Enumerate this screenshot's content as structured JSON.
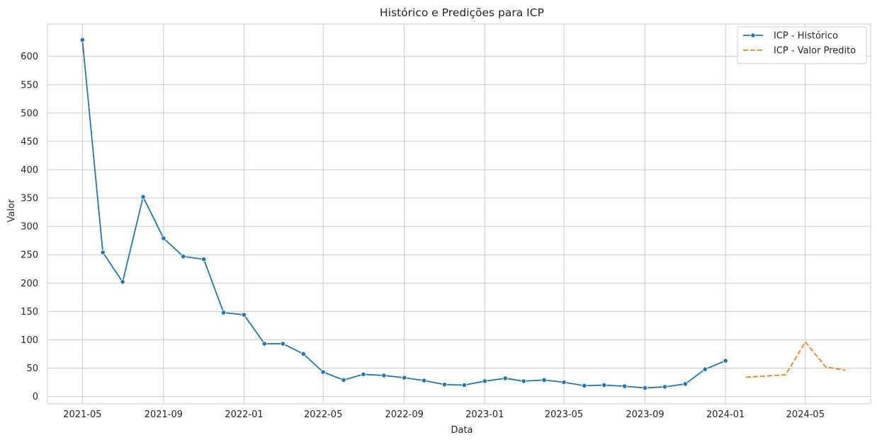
{
  "chart_data": {
    "type": "line",
    "title": "Histórico e Predições para ICP",
    "xlabel": "Data",
    "ylabel": "Valor",
    "x_ticks": [
      "2021-05",
      "2021-09",
      "2022-01",
      "2022-05",
      "2022-09",
      "2023-01",
      "2023-05",
      "2023-09",
      "2024-01",
      "2024-05"
    ],
    "y_ticks": [
      0,
      50,
      100,
      150,
      200,
      250,
      300,
      350,
      400,
      450,
      500,
      550,
      600
    ],
    "ylim": [
      -13,
      657
    ],
    "xlim": [
      "2021-03-09",
      "2024-08-08"
    ],
    "grid": true,
    "legend_position": "top-right",
    "series": [
      {
        "name": "ICP - Histórico",
        "color": "#1f77b4",
        "style": "solid",
        "marker": "circle",
        "points": [
          {
            "x": "2021-05",
            "y": 629
          },
          {
            "x": "2021-06",
            "y": 254
          },
          {
            "x": "2021-07",
            "y": 202
          },
          {
            "x": "2021-08",
            "y": 352
          },
          {
            "x": "2021-09",
            "y": 279
          },
          {
            "x": "2021-10",
            "y": 247
          },
          {
            "x": "2021-11",
            "y": 242
          },
          {
            "x": "2021-12",
            "y": 148
          },
          {
            "x": "2022-01",
            "y": 144
          },
          {
            "x": "2022-02",
            "y": 93
          },
          {
            "x": "2022-03",
            "y": 93
          },
          {
            "x": "2022-04",
            "y": 75
          },
          {
            "x": "2022-05",
            "y": 43
          },
          {
            "x": "2022-06",
            "y": 29
          },
          {
            "x": "2022-07",
            "y": 39
          },
          {
            "x": "2022-08",
            "y": 37
          },
          {
            "x": "2022-09",
            "y": 33
          },
          {
            "x": "2022-10",
            "y": 28
          },
          {
            "x": "2022-11",
            "y": 21
          },
          {
            "x": "2022-12",
            "y": 20
          },
          {
            "x": "2023-01",
            "y": 27
          },
          {
            "x": "2023-02",
            "y": 32
          },
          {
            "x": "2023-03",
            "y": 27
          },
          {
            "x": "2023-04",
            "y": 29
          },
          {
            "x": "2023-05",
            "y": 25
          },
          {
            "x": "2023-06",
            "y": 19
          },
          {
            "x": "2023-07",
            "y": 20
          },
          {
            "x": "2023-08",
            "y": 18
          },
          {
            "x": "2023-09",
            "y": 15
          },
          {
            "x": "2023-10",
            "y": 17
          },
          {
            "x": "2023-11",
            "y": 22
          },
          {
            "x": "2023-12",
            "y": 48
          },
          {
            "x": "2024-01",
            "y": 63
          }
        ]
      },
      {
        "name": "ICP - Valor Predito",
        "color": "#ff7f0e",
        "style": "dashed",
        "marker": "none",
        "points": [
          {
            "x": "2024-02",
            "y": 34
          },
          {
            "x": "2024-03",
            "y": 36
          },
          {
            "x": "2024-04",
            "y": 38
          },
          {
            "x": "2024-05",
            "y": 96
          },
          {
            "x": "2024-06",
            "y": 52
          },
          {
            "x": "2024-07",
            "y": 46
          }
        ]
      }
    ]
  }
}
